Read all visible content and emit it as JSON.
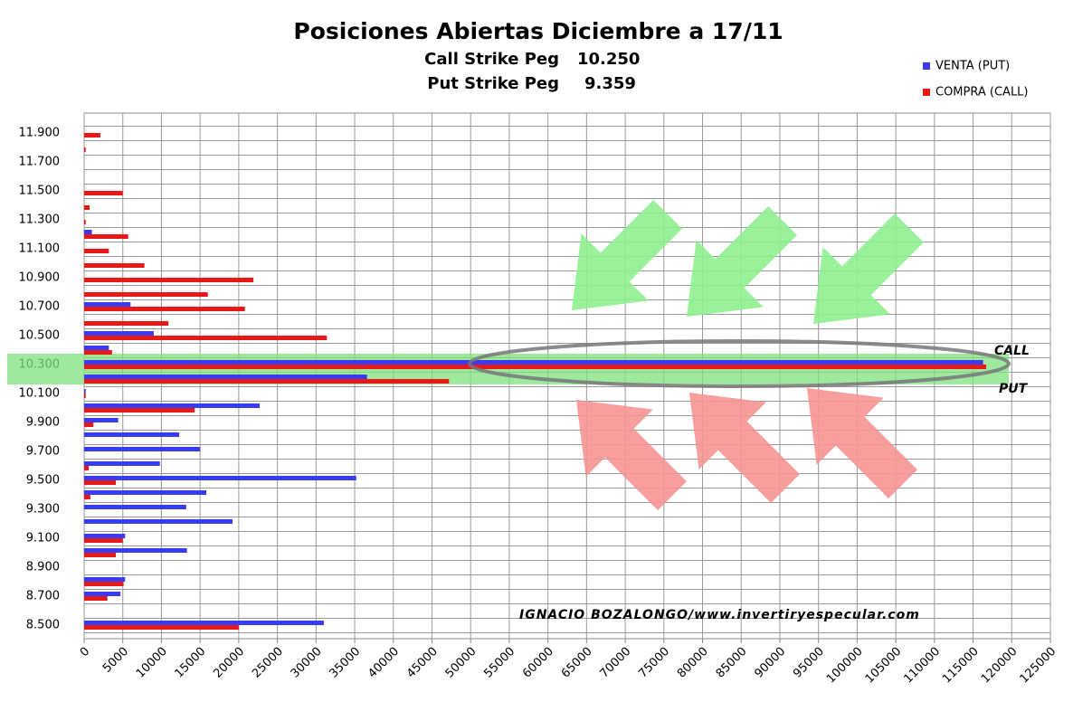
{
  "chart_data": {
    "type": "barh",
    "title": "Posiciones Abiertas Diciembre a 17/11",
    "subtitle_lines": [
      [
        "Call Strike Peg",
        "10.250"
      ],
      [
        "Put Strike Peg",
        "9.359"
      ]
    ],
    "annotations": [
      "CALL",
      "PUT",
      "IGNACIO BOZALONGO/www.invertiryespecular.com"
    ],
    "categories": [
      "8.500",
      null,
      "8.700",
      null,
      "8.900",
      null,
      "9.100",
      null,
      "9.300",
      null,
      "9.500",
      null,
      "9.700",
      null,
      "9.900",
      null,
      "10.100",
      null,
      "10.300",
      null,
      "10.500",
      null,
      "10.700",
      null,
      "10.900",
      null,
      "11.100",
      null,
      "11.300",
      null,
      "11.500",
      null,
      "11.700",
      null,
      "11.900"
    ],
    "series": [
      {
        "name": "VENTA (PUT)",
        "color": "#3a3af0",
        "values": [
          31000,
          0,
          4700,
          5300,
          0,
          13300,
          5300,
          19200,
          13200,
          15800,
          35200,
          9800,
          15000,
          12300,
          4400,
          22700,
          200,
          36600,
          116300,
          3200,
          9000,
          0,
          6000,
          0,
          0,
          0,
          0,
          1000,
          0,
          0,
          0,
          0,
          0,
          0,
          0
        ]
      },
      {
        "name": "COMPRA (CALL)",
        "color": "#e81818",
        "values": [
          20000,
          0,
          3000,
          5100,
          0,
          4100,
          5000,
          0,
          0,
          800,
          4100,
          600,
          0,
          0,
          1200,
          14300,
          200,
          47200,
          116700,
          3600,
          31400,
          10900,
          20800,
          16000,
          21900,
          7800,
          3200,
          5700,
          200,
          700,
          5000,
          0,
          0,
          200,
          2100
        ]
      }
    ],
    "xlim": [
      0,
      125000
    ],
    "xticks": [
      0,
      5000,
      10000,
      15000,
      20000,
      25000,
      30000,
      35000,
      40000,
      45000,
      50000,
      55000,
      60000,
      65000,
      70000,
      75000,
      80000,
      85000,
      90000,
      95000,
      100000,
      105000,
      110000,
      115000,
      120000,
      125000
    ],
    "grid": true
  }
}
